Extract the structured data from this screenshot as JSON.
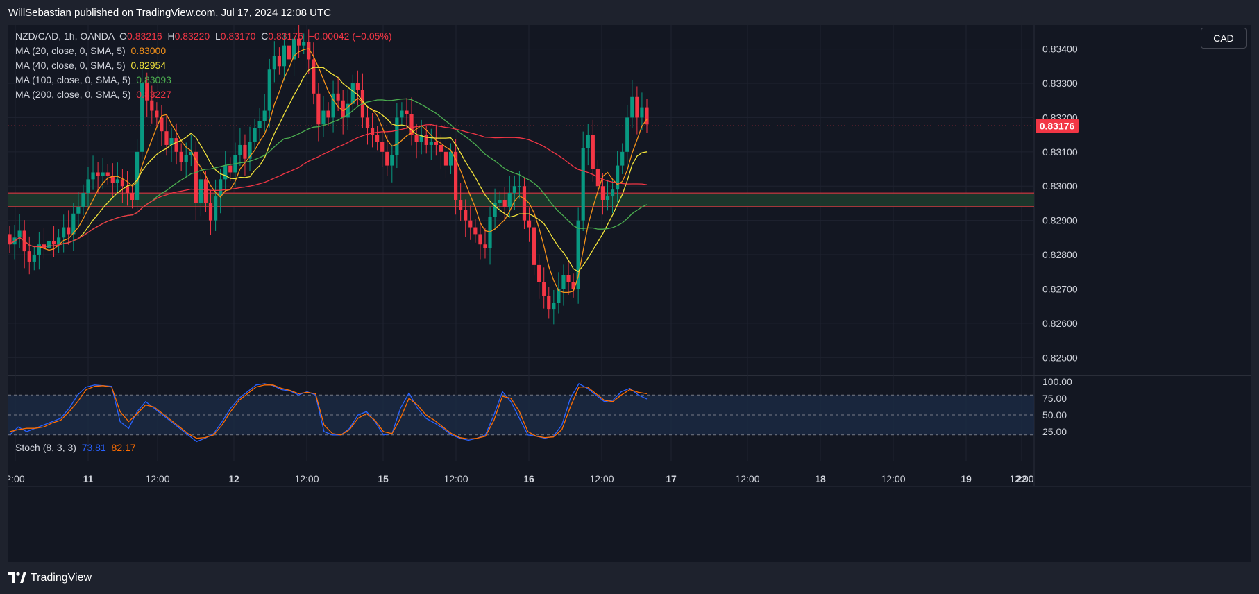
{
  "header": {
    "published_text": "WillSebastian published on TradingView.com, Jul 17, 2024 12:08 UTC"
  },
  "legend": {
    "symbol": "NZD/CAD, 1h, OANDA",
    "open_label": "O",
    "open": "0.83216",
    "high_label": "H",
    "high": "0.83220",
    "low_label": "L",
    "low": "0.83170",
    "close_label": "C",
    "close": "0.83176",
    "change": "−0.00042 (−0.05%)",
    "ma": [
      {
        "label": "MA (20, close, 0, SMA, 5)",
        "value": "0.83000",
        "color": "#f7931a"
      },
      {
        "label": "MA (40, close, 0, SMA, 5)",
        "value": "0.82954",
        "color": "#f2e33b"
      },
      {
        "label": "MA (100, close, 0, SMA, 5)",
        "value": "0.83093",
        "color": "#4caf50"
      },
      {
        "label": "MA (200, close, 0, SMA, 5)",
        "value": "0.83227",
        "color": "#f23645"
      }
    ]
  },
  "currency_button": "CAD",
  "price_axis": {
    "ticks": [
      "0.83400",
      "0.83300",
      "0.83200",
      "0.83100",
      "0.83000",
      "0.82900",
      "0.82800",
      "0.82700",
      "0.82600",
      "0.82500"
    ],
    "last_price": "0.83176"
  },
  "stoch": {
    "label": "Stoch (8, 3, 3)",
    "k": "73.81",
    "d": "82.17",
    "k_color": "#2962ff",
    "d_color": "#ff6d00",
    "ticks": [
      "100.00",
      "75.00",
      "50.00",
      "25.00"
    ]
  },
  "time_axis": {
    "ticks": [
      "2:00",
      "11",
      "12:00",
      "12",
      "12:00",
      "15",
      "12:00",
      "16",
      "12:00",
      "17",
      "12:00",
      "18",
      "12:00",
      "19",
      "12:00",
      "22",
      "12:00"
    ]
  },
  "footer": {
    "brand": "TradingView"
  },
  "chart_data": [
    {
      "type": "candlestick",
      "title": "NZD/CAD, 1h, OANDA",
      "ylim": [
        0.8245,
        0.8347
      ],
      "x_ticks": [
        "2:00",
        "11",
        "12:00",
        "12",
        "12:00",
        "15",
        "12:00",
        "16",
        "12:00",
        "17",
        "12:00",
        "18",
        "12:00",
        "19",
        "12:00",
        "22",
        "12:00"
      ],
      "y_ticks": [
        0.834,
        0.833,
        0.832,
        0.831,
        0.83,
        0.829,
        0.828,
        0.827,
        0.826,
        0.825
      ],
      "last_price": 0.83176,
      "zone": {
        "low": 0.8294,
        "high": 0.8298,
        "color": "#1e3a2c"
      },
      "closes": [
        0.8283,
        0.8285,
        0.8287,
        0.8281,
        0.8278,
        0.828,
        0.8283,
        0.8282,
        0.8284,
        0.8283,
        0.8285,
        0.8288,
        0.8286,
        0.8292,
        0.8294,
        0.8298,
        0.8302,
        0.8304,
        0.8303,
        0.8304,
        0.8303,
        0.8301,
        0.8302,
        0.83,
        0.8298,
        0.8296,
        0.831,
        0.833,
        0.8325,
        0.8322,
        0.832,
        0.8316,
        0.8312,
        0.8314,
        0.831,
        0.8307,
        0.8309,
        0.831,
        0.8295,
        0.8302,
        0.8295,
        0.829,
        0.8297,
        0.8302,
        0.8306,
        0.8304,
        0.8309,
        0.8312,
        0.8308,
        0.8313,
        0.8317,
        0.8319,
        0.8322,
        0.8334,
        0.8338,
        0.8335,
        0.8341,
        0.8337,
        0.8343,
        0.8341,
        0.8342,
        0.8337,
        0.8327,
        0.8318,
        0.8322,
        0.832,
        0.8327,
        0.8325,
        0.832,
        0.8324,
        0.833,
        0.8328,
        0.832,
        0.8317,
        0.8315,
        0.8313,
        0.831,
        0.8306,
        0.8309,
        0.832,
        0.8322,
        0.8321,
        0.8315,
        0.8313,
        0.8315,
        0.8312,
        0.8313,
        0.8312,
        0.831,
        0.8306,
        0.831,
        0.8296,
        0.8293,
        0.829,
        0.8288,
        0.8286,
        0.8283,
        0.8282,
        0.8291,
        0.8295,
        0.8296,
        0.8294,
        0.8298,
        0.83,
        0.83,
        0.829,
        0.8288,
        0.8277,
        0.8272,
        0.8268,
        0.8264,
        0.8266,
        0.827,
        0.8274,
        0.8272,
        0.827,
        0.829,
        0.8311,
        0.8315,
        0.8305,
        0.83,
        0.8296,
        0.8297,
        0.8299,
        0.8306,
        0.831,
        0.832,
        0.8326,
        0.832,
        0.8323,
        0.8318
      ]
    },
    {
      "type": "line",
      "title": "Stoch (8, 3, 3)",
      "ylim": [
        0,
        100
      ],
      "y_ticks": [
        100,
        75,
        50,
        25
      ],
      "bands": [
        20,
        80
      ],
      "series": [
        {
          "name": "%K",
          "color": "#2962ff",
          "values": [
            20,
            32,
            25,
            30,
            35,
            40,
            45,
            60,
            80,
            92,
            95,
            94,
            93,
            40,
            30,
            55,
            70,
            60,
            50,
            40,
            30,
            20,
            10,
            15,
            22,
            40,
            60,
            75,
            85,
            95,
            97,
            94,
            88,
            86,
            80,
            85,
            80,
            25,
            20,
            20,
            30,
            50,
            55,
            40,
            20,
            22,
            60,
            83,
            60,
            45,
            38,
            30,
            20,
            15,
            12,
            15,
            20,
            50,
            85,
            70,
            45,
            20,
            18,
            15,
            18,
            35,
            75,
            97,
            90,
            80,
            70,
            72,
            85,
            90,
            80,
            74
          ]
        },
        {
          "name": "%D",
          "color": "#ff6d00",
          "values": [
            25,
            28,
            30,
            30,
            32,
            38,
            42,
            55,
            70,
            88,
            93,
            94,
            92,
            55,
            40,
            52,
            65,
            62,
            52,
            42,
            32,
            22,
            15,
            16,
            20,
            35,
            55,
            72,
            82,
            92,
            95,
            95,
            90,
            87,
            82,
            84,
            82,
            35,
            22,
            20,
            28,
            45,
            52,
            42,
            25,
            22,
            45,
            75,
            65,
            50,
            42,
            32,
            22,
            16,
            14,
            15,
            18,
            42,
            78,
            75,
            55,
            25,
            18,
            16,
            17,
            28,
            62,
            92,
            92,
            82,
            72,
            70,
            80,
            88,
            84,
            82
          ]
        }
      ]
    }
  ]
}
